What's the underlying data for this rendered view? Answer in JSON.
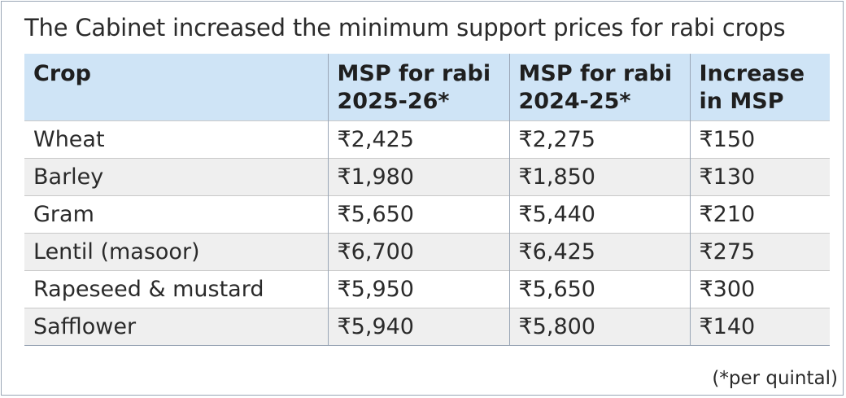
{
  "title": "The Cabinet increased the minimum support prices for rabi crops",
  "footnote": "(*per quintal)",
  "chart_data": {
    "type": "table",
    "title": "The Cabinet increased the minimum support prices for rabi crops",
    "columns": [
      {
        "line1": "Crop",
        "line2": ""
      },
      {
        "line1": "MSP for rabi",
        "line2": "2025-26*"
      },
      {
        "line1": "MSP for rabi",
        "line2": "2024-25*"
      },
      {
        "line1": "Increase",
        "line2": "in MSP"
      }
    ],
    "rows": [
      [
        "Wheat",
        "₹2,425",
        "₹2,275",
        "₹150"
      ],
      [
        "Barley",
        "₹1,980",
        "₹1,850",
        "₹130"
      ],
      [
        "Gram",
        "₹5,650",
        "₹5,440",
        "₹210"
      ],
      [
        "Lentil (masoor)",
        "₹6,700",
        "₹6,425",
        "₹275"
      ],
      [
        "Rapeseed & mustard",
        "₹5,950",
        "₹5,650",
        "₹300"
      ],
      [
        "Safflower",
        "₹5,940",
        "₹5,800",
        "₹140"
      ]
    ],
    "footnote": "(*per quintal)",
    "colors": {
      "header_bg": "#cfe4f6",
      "row_alt_bg": "#efefef",
      "row_bg": "#ffffff",
      "border": "#9aa6b6"
    }
  }
}
